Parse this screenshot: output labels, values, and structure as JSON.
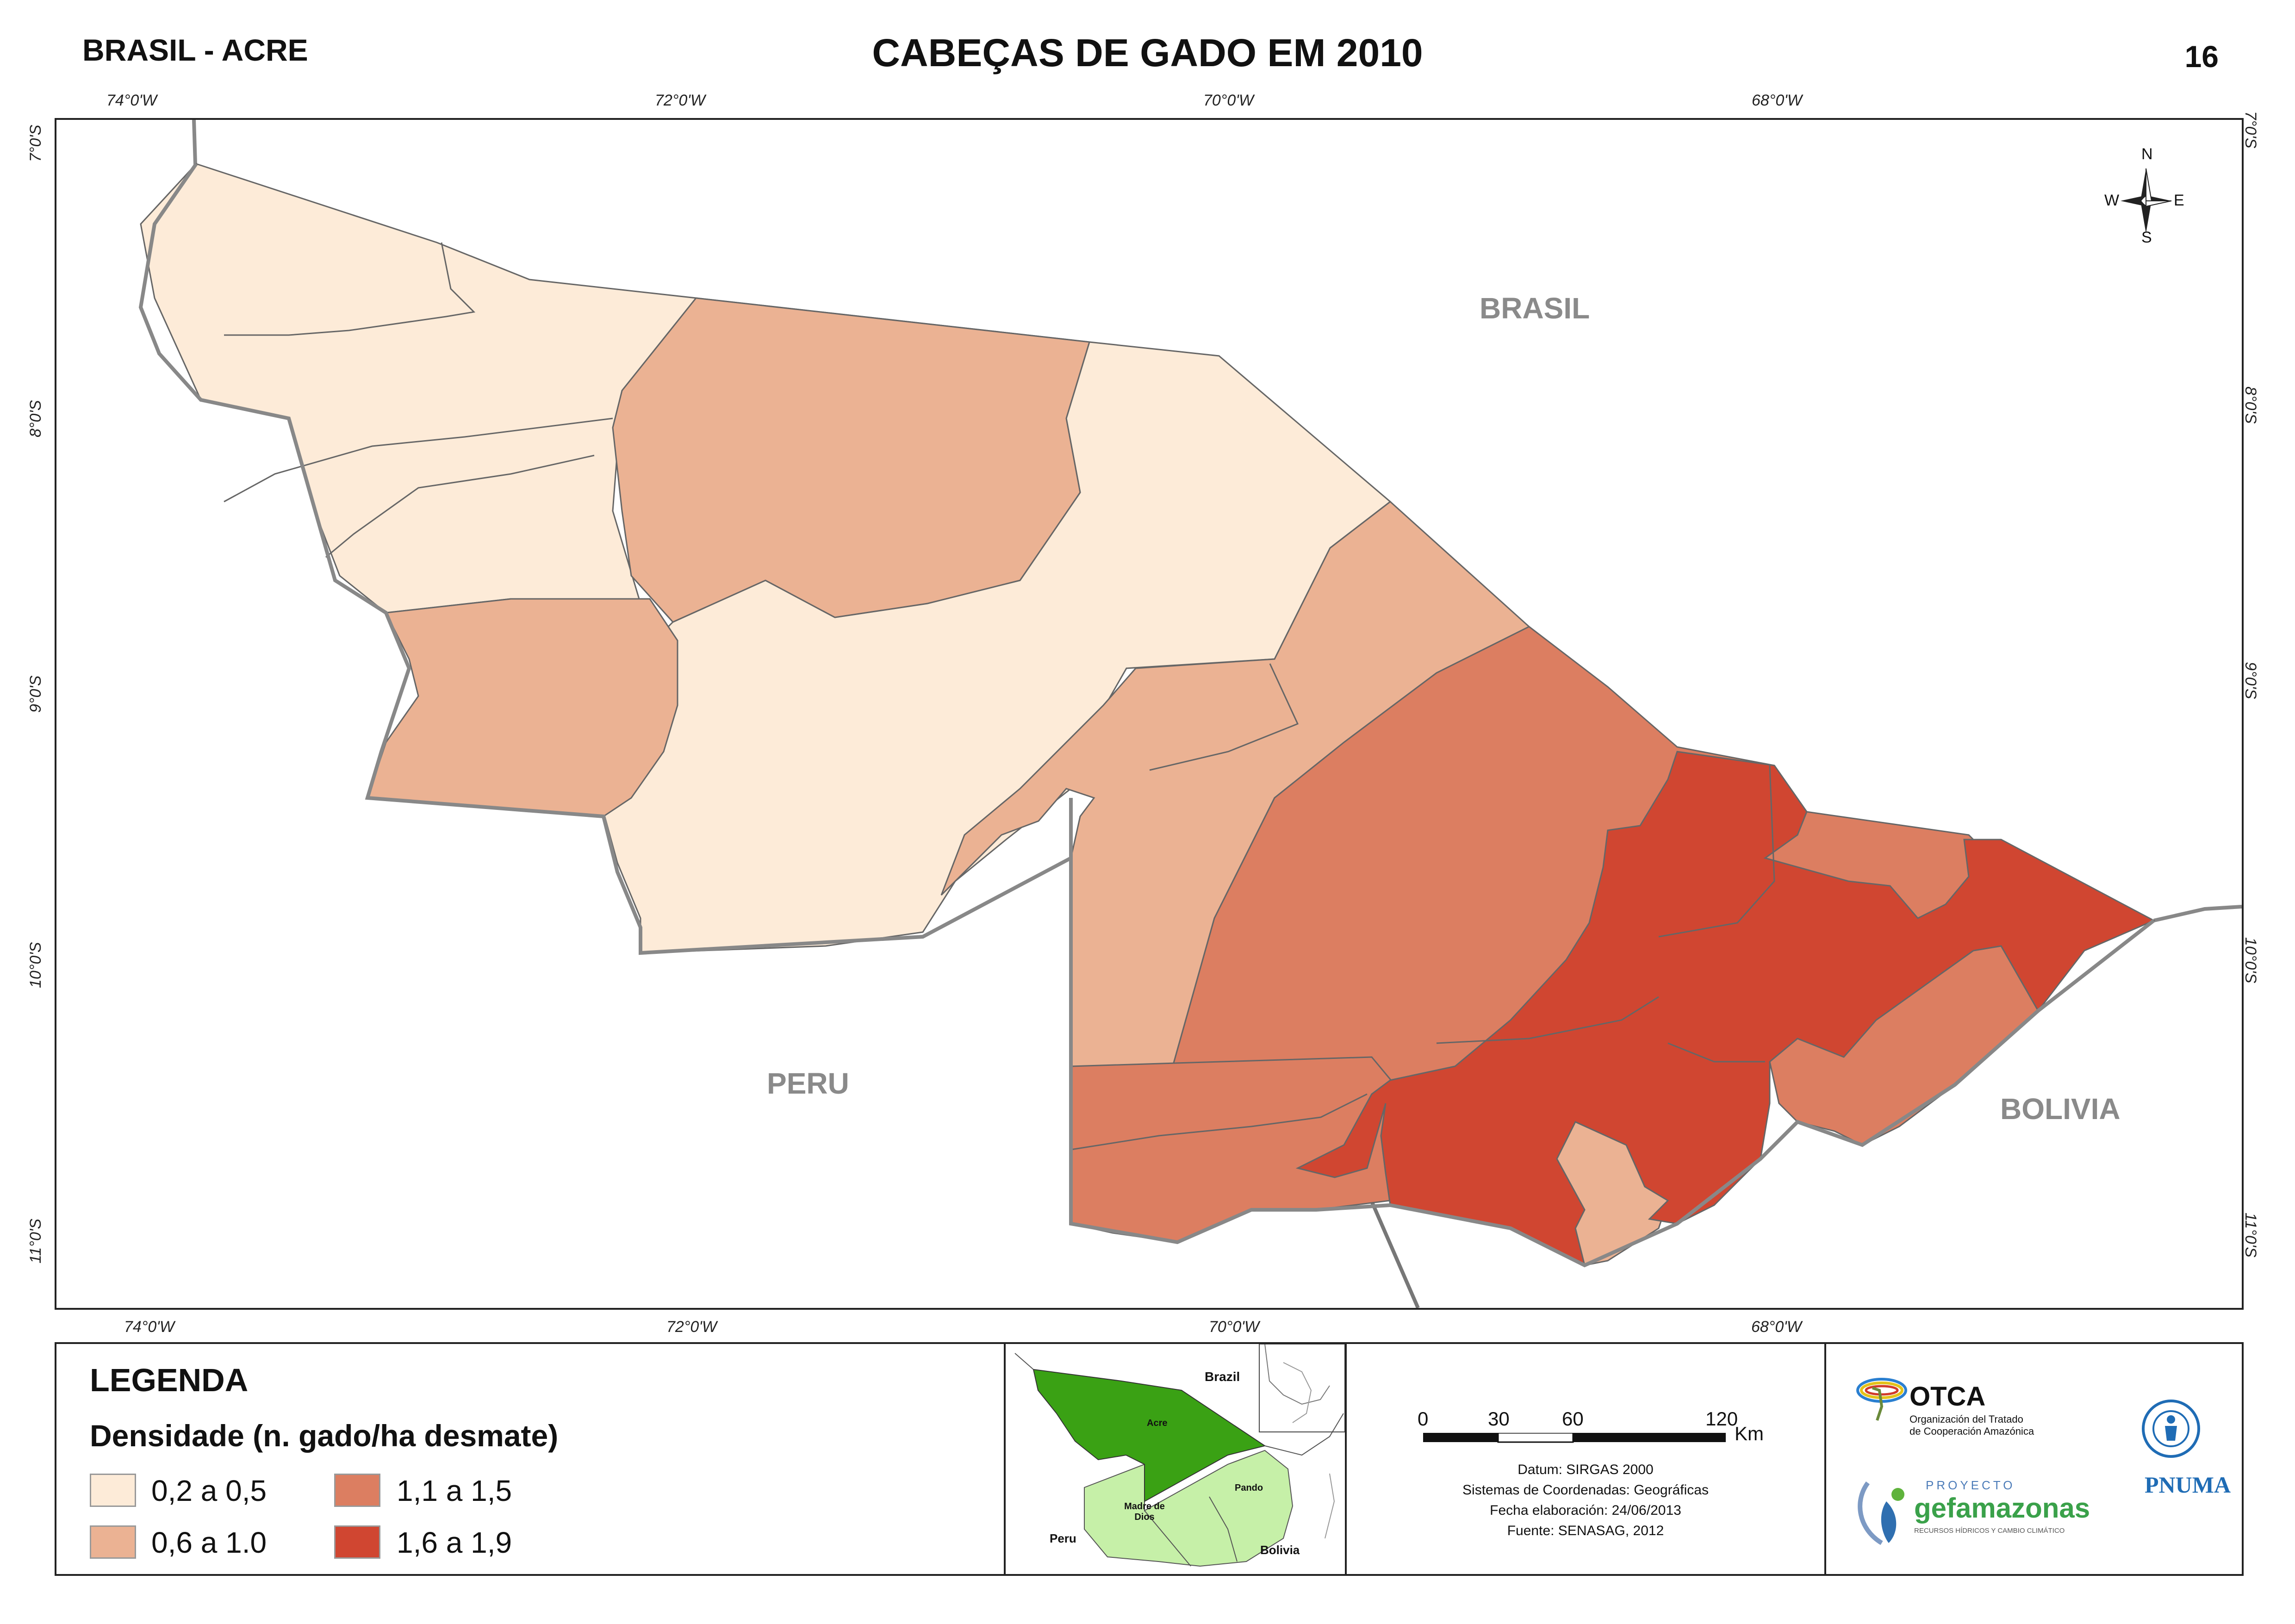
{
  "header": {
    "region": "BRASIL - ACRE",
    "title": "CABEÇAS DE GADO EM 2010",
    "page_number": "16"
  },
  "graticule": {
    "longitudes": [
      "74°0'W",
      "72°0'W",
      "70°0'W",
      "68°0'W"
    ],
    "latitudes": [
      "7°0'S",
      "8°0'S",
      "9°0'S",
      "10°0'S",
      "11°0'S"
    ]
  },
  "map": {
    "countries": {
      "brasil": "BRASIL",
      "peru": "PERU",
      "bolivia": "BOLIVIA"
    },
    "compass": {
      "n": "N",
      "s": "S",
      "e": "E",
      "w": "W"
    }
  },
  "legend": {
    "title": "LEGENDA",
    "subtitle": "Densidade (n. gado/ha desmate)",
    "classes": [
      {
        "label": "0,2 a 0,5",
        "color": "#fdebd8"
      },
      {
        "label": "0,6 a 1.0",
        "color": "#ebb293"
      },
      {
        "label": "1,1 a 1,5",
        "color": "#dc7e61"
      },
      {
        "label": "1,6 a 1,9",
        "color": "#d04631"
      }
    ]
  },
  "inset": {
    "brazil": "Brazil",
    "acre": "Acre",
    "madre_de_dios": "Madre de Dios",
    "pando": "Pando",
    "peru": "Peru",
    "bolivia": "Bolivia"
  },
  "scalebar": {
    "ticks": [
      "0",
      "30",
      "60",
      "120"
    ],
    "unit": "Km"
  },
  "metadata": {
    "datum": "Datum: SIRGAS 2000",
    "system": "Sistemas de Coordenadas: Geográficas",
    "date": "Fecha elaboración: 24/06/2013",
    "source": "Fuente: SENASAG, 2012"
  },
  "logos": {
    "otca_name": "OTCA",
    "otca_sub1": "Organización del Tratado",
    "otca_sub2": "de Cooperación Amazónica",
    "proyecto": "PROYECTO",
    "gef": "gefamazonas",
    "gef_sub": "RECURSOS HÍDRICOS Y CAMBIO CLIMÁTICO",
    "pnuma": "PNUMA"
  },
  "colors": {
    "border": "#222222",
    "country_label": "#8a8a8a",
    "inset_acre": "#3aa114",
    "inset_neighbors": "#c6f0a8"
  }
}
